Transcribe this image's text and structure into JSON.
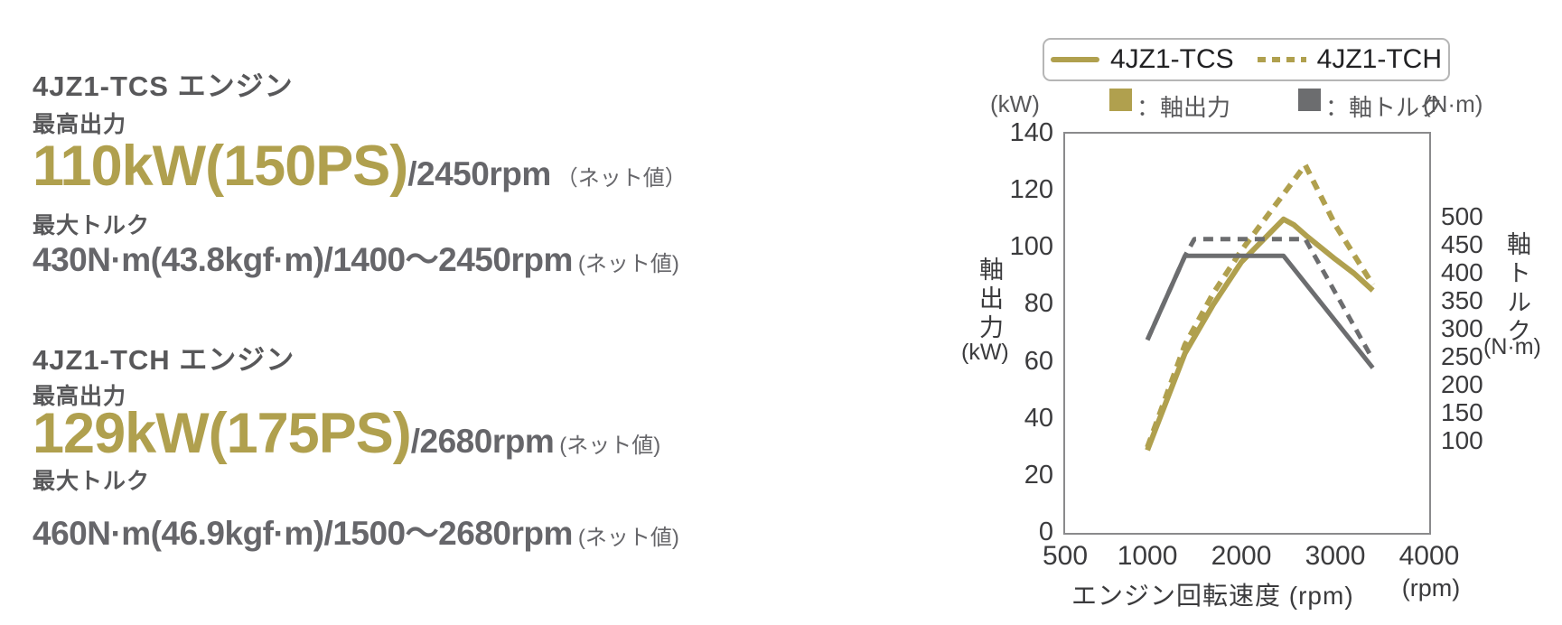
{
  "colors": {
    "gold": "#b0a04e",
    "gray": "#6c6d6f",
    "heading": "#58585a",
    "value_text": "#66666a",
    "tick": "#3b3b3d",
    "legend_text": "#212123",
    "frame": "#8a8a8c",
    "legendborder": "#b6b6b6"
  },
  "specs": [
    {
      "engine": "4JZ1-TCS エンジン",
      "max_power_label": "最高出力",
      "power_value": "110kW(150PS)",
      "power_rpm": "/2450rpm",
      "power_note": "（ネット値）",
      "max_torque_label": "最大トルク",
      "torque_value": "430N·m(43.8kgf·m)/1400～2450rpm",
      "torque_note": "(ネット値)"
    },
    {
      "engine": "4JZ1-TCH エンジン",
      "max_power_label": "最高出力",
      "power_value": "129kW(175PS)",
      "power_rpm": "/2680rpm",
      "power_note": "(ネット値)",
      "max_torque_label": "最大トルク",
      "torque_value": "460N·m(46.9kgf·m)/1500～2680rpm",
      "torque_note": "(ネット値)"
    }
  ],
  "chart_data": {
    "type": "line",
    "x_axis": {
      "label": "エンジン回転速度 (rpm)",
      "unit": "(rpm)",
      "ticks": [
        500,
        1000,
        2000,
        3000,
        4000
      ],
      "range": [
        500,
        4000
      ]
    },
    "y_left": {
      "label": "軸出力",
      "unit": "(kW)",
      "ticks": [
        0,
        20,
        40,
        60,
        80,
        100,
        120,
        140
      ],
      "range": [
        0,
        140
      ]
    },
    "y_right": {
      "label": "軸トルク",
      "unit": "(N·m)",
      "ticks": [
        100,
        150,
        200,
        250,
        300,
        350,
        400,
        450,
        500
      ],
      "range": [
        100,
        500
      ]
    },
    "legend": [
      {
        "label": "4JZ1-TCS",
        "line": "solid"
      },
      {
        "label": "4JZ1-TCH",
        "line": "dashed"
      }
    ],
    "series_legend": [
      {
        "label": "：軸出力",
        "color": "#b0a04e"
      },
      {
        "label": "：軸トルク",
        "color": "#6c6d6f"
      }
    ],
    "series": [
      {
        "name": "4JZ1-TCS 軸出力 (kW)",
        "axis": "left",
        "dash": false,
        "color": "#b0a04e",
        "points": [
          [
            1000,
            29
          ],
          [
            1400,
            63
          ],
          [
            1700,
            80
          ],
          [
            2000,
            95
          ],
          [
            2450,
            110
          ],
          [
            2560,
            108
          ],
          [
            2700,
            104
          ],
          [
            2850,
            100
          ],
          [
            3000,
            96
          ],
          [
            3200,
            91
          ],
          [
            3400,
            85
          ]
        ]
      },
      {
        "name": "4JZ1-TCH 軸出力 (kW)",
        "axis": "left",
        "dash": true,
        "color": "#b0a04e",
        "points": [
          [
            1000,
            30
          ],
          [
            1400,
            66
          ],
          [
            1700,
            84
          ],
          [
            2000,
            99
          ],
          [
            2680,
            129
          ],
          [
            3000,
            108
          ],
          [
            3400,
            87
          ]
        ]
      },
      {
        "name": "4JZ1-TCS 軸トルク (N·m)",
        "axis": "right",
        "dash": false,
        "color": "#6c6d6f",
        "points": [
          [
            1000,
            280
          ],
          [
            1400,
            430
          ],
          [
            2450,
            430
          ],
          [
            3400,
            230
          ]
        ]
      },
      {
        "name": "4JZ1-TCH 軸トルク (N·m)",
        "axis": "right",
        "dash": true,
        "color": "#6c6d6f",
        "points": [
          [
            1000,
            280
          ],
          [
            1400,
            430
          ],
          [
            1500,
            460
          ],
          [
            2680,
            460
          ],
          [
            3400,
            245
          ]
        ]
      }
    ]
  }
}
